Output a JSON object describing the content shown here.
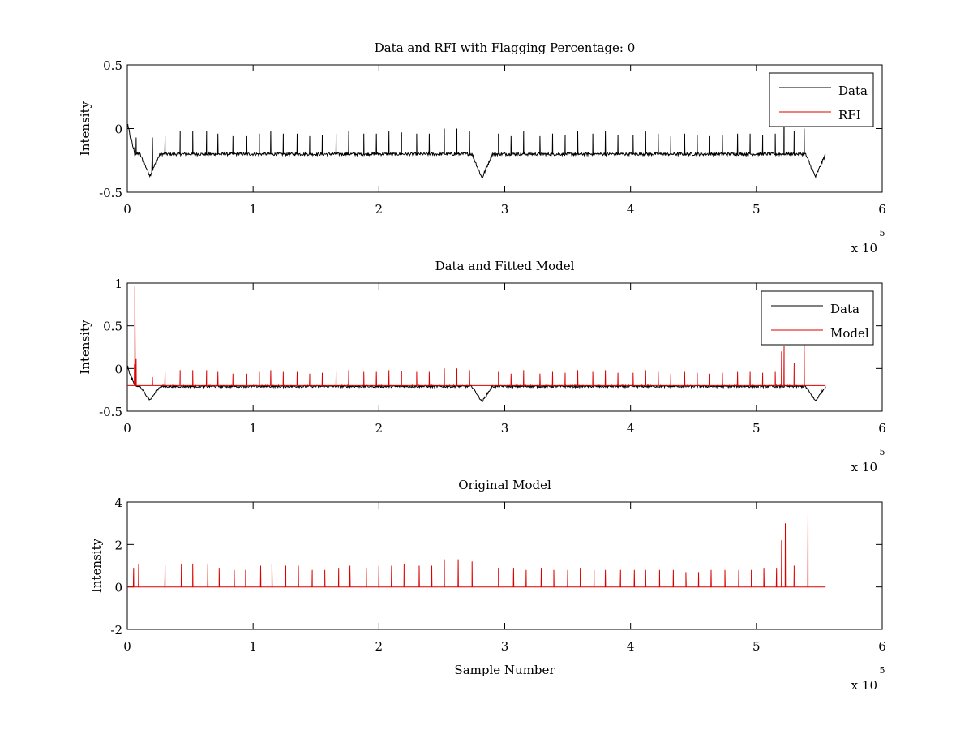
{
  "chart_data": [
    {
      "type": "line",
      "title": "Data and RFI with Flagging Percentage: 0",
      "xlabel": "",
      "ylabel": "Intensity",
      "xlim": [
        0,
        6
      ],
      "ylim": [
        -0.5,
        0.5
      ],
      "xticks": [
        "0",
        "1",
        "2",
        "3",
        "4",
        "5",
        "6"
      ],
      "yticks": [
        "-0.5",
        "0",
        "0.5"
      ],
      "x_multiplier": "x 10",
      "x_multiplier_exp": "5",
      "legend_position": "top-right",
      "grid": false,
      "series": [
        {
          "name": "Data",
          "color": "#000000",
          "baseline": -0.2,
          "noise": 0.012,
          "x_end": 5.55,
          "start_peak": 0.03,
          "dips": [
            {
              "x": 0.18,
              "y": -0.37
            },
            {
              "x": 2.82,
              "y": -0.39
            },
            {
              "x": 5.47,
              "y": -0.38
            }
          ],
          "spikes_x": [
            0.07,
            0.2,
            0.3,
            0.42,
            0.52,
            0.63,
            0.72,
            0.84,
            0.95,
            1.05,
            1.14,
            1.24,
            1.35,
            1.45,
            1.55,
            1.66,
            1.76,
            1.88,
            1.98,
            2.08,
            2.18,
            2.3,
            2.4,
            2.52,
            2.62,
            2.72,
            2.95,
            3.05,
            3.15,
            3.28,
            3.38,
            3.48,
            3.58,
            3.7,
            3.8,
            3.9,
            4.02,
            4.12,
            4.22,
            4.32,
            4.43,
            4.53,
            4.63,
            4.73,
            4.85,
            4.95,
            5.05,
            5.15,
            5.22,
            5.3,
            5.38
          ],
          "spikes_y": [
            -0.07,
            -0.07,
            -0.06,
            -0.02,
            -0.02,
            -0.02,
            -0.04,
            -0.06,
            -0.06,
            -0.04,
            -0.02,
            -0.04,
            -0.04,
            -0.06,
            -0.05,
            -0.04,
            -0.02,
            -0.04,
            -0.04,
            -0.02,
            -0.03,
            -0.04,
            -0.04,
            0.0,
            0.0,
            -0.02,
            -0.04,
            -0.06,
            -0.02,
            -0.06,
            -0.04,
            -0.05,
            -0.02,
            -0.04,
            -0.02,
            -0.05,
            -0.05,
            -0.02,
            -0.04,
            -0.06,
            -0.04,
            -0.05,
            -0.06,
            -0.05,
            -0.04,
            -0.04,
            -0.05,
            -0.04,
            0.2,
            -0.02,
            0.0
          ]
        },
        {
          "name": "RFI",
          "color": "#dd0000",
          "points": []
        }
      ]
    },
    {
      "type": "line",
      "title": "Data and Fitted Model",
      "xlabel": "",
      "ylabel": "Intensity",
      "xlim": [
        0,
        6
      ],
      "ylim": [
        -0.5,
        1
      ],
      "xticks": [
        "0",
        "1",
        "2",
        "3",
        "4",
        "5",
        "6"
      ],
      "yticks": [
        "-0.5",
        "0",
        "0.5",
        "1"
      ],
      "x_multiplier": "x 10",
      "x_multiplier_exp": "5",
      "legend_position": "top-right",
      "grid": false,
      "series": [
        {
          "name": "Data",
          "color": "#000000",
          "baseline": -0.21,
          "noise": 0.012,
          "x_end": 5.55,
          "start_peak": 0.03,
          "dips": [
            {
              "x": 0.18,
              "y": -0.37
            },
            {
              "x": 2.82,
              "y": -0.39
            },
            {
              "x": 5.47,
              "y": -0.38
            }
          ]
        },
        {
          "name": "Model",
          "color": "#dd0000",
          "baseline": -0.2,
          "x_end": 5.55,
          "start_peak_x": 0.06,
          "start_peak_y": 0.96,
          "spikes_x": [
            0.07,
            0.2,
            0.3,
            0.42,
            0.52,
            0.63,
            0.72,
            0.84,
            0.95,
            1.05,
            1.14,
            1.24,
            1.35,
            1.45,
            1.55,
            1.66,
            1.76,
            1.88,
            1.98,
            2.08,
            2.18,
            2.3,
            2.4,
            2.52,
            2.62,
            2.72,
            2.95,
            3.05,
            3.15,
            3.28,
            3.38,
            3.48,
            3.58,
            3.7,
            3.8,
            3.9,
            4.02,
            4.12,
            4.22,
            4.32,
            4.43,
            4.53,
            4.63,
            4.73,
            4.85,
            4.95,
            5.05,
            5.15,
            5.2,
            5.22,
            5.3,
            5.38
          ],
          "spikes_y": [
            0.12,
            -0.1,
            -0.04,
            -0.02,
            -0.02,
            -0.02,
            -0.04,
            -0.06,
            -0.06,
            -0.04,
            -0.02,
            -0.04,
            -0.04,
            -0.06,
            -0.05,
            -0.04,
            -0.02,
            -0.04,
            -0.04,
            -0.02,
            -0.03,
            -0.04,
            -0.04,
            0.0,
            0.0,
            -0.02,
            -0.04,
            -0.06,
            -0.02,
            -0.06,
            -0.04,
            -0.05,
            -0.02,
            -0.04,
            -0.02,
            -0.05,
            -0.05,
            -0.02,
            -0.04,
            -0.06,
            -0.04,
            -0.05,
            -0.06,
            -0.05,
            -0.04,
            -0.04,
            -0.05,
            -0.04,
            0.2,
            0.26,
            0.06,
            0.3
          ]
        }
      ]
    },
    {
      "type": "line",
      "title": "Original Model",
      "xlabel": "Sample Number",
      "ylabel": "Intensity",
      "xlim": [
        0,
        6
      ],
      "ylim": [
        -2,
        4
      ],
      "xticks": [
        "0",
        "1",
        "2",
        "3",
        "4",
        "5",
        "6"
      ],
      "yticks": [
        "-2",
        "0",
        "2",
        "4"
      ],
      "x_multiplier": "x 10",
      "x_multiplier_exp": "5",
      "grid": false,
      "series": [
        {
          "name": "",
          "color": "#dd0000",
          "baseline": 0,
          "x_end": 5.55,
          "spikes_x": [
            0.05,
            0.09,
            0.3,
            0.43,
            0.52,
            0.64,
            0.73,
            0.85,
            0.94,
            1.06,
            1.15,
            1.26,
            1.36,
            1.47,
            1.57,
            1.68,
            1.77,
            1.9,
            2.0,
            2.1,
            2.2,
            2.32,
            2.42,
            2.52,
            2.63,
            2.74,
            2.95,
            3.07,
            3.17,
            3.29,
            3.39,
            3.5,
            3.6,
            3.71,
            3.8,
            3.92,
            4.03,
            4.12,
            4.23,
            4.34,
            4.44,
            4.54,
            4.64,
            4.75,
            4.86,
            4.96,
            5.06,
            5.16,
            5.2,
            5.23,
            5.3,
            5.41
          ],
          "spikes_y": [
            0.9,
            1.1,
            1.0,
            1.1,
            1.1,
            1.1,
            0.9,
            0.8,
            0.8,
            1.0,
            1.1,
            1.0,
            1.0,
            0.8,
            0.8,
            0.9,
            1.0,
            0.9,
            1.0,
            1.0,
            1.1,
            1.0,
            1.0,
            1.3,
            1.3,
            1.2,
            0.9,
            0.9,
            0.8,
            0.9,
            0.8,
            0.8,
            0.9,
            0.8,
            0.8,
            0.8,
            0.8,
            0.8,
            0.8,
            0.8,
            0.7,
            0.7,
            0.8,
            0.8,
            0.8,
            0.8,
            0.9,
            0.9,
            2.2,
            3.0,
            1.0,
            3.6
          ]
        }
      ]
    }
  ]
}
